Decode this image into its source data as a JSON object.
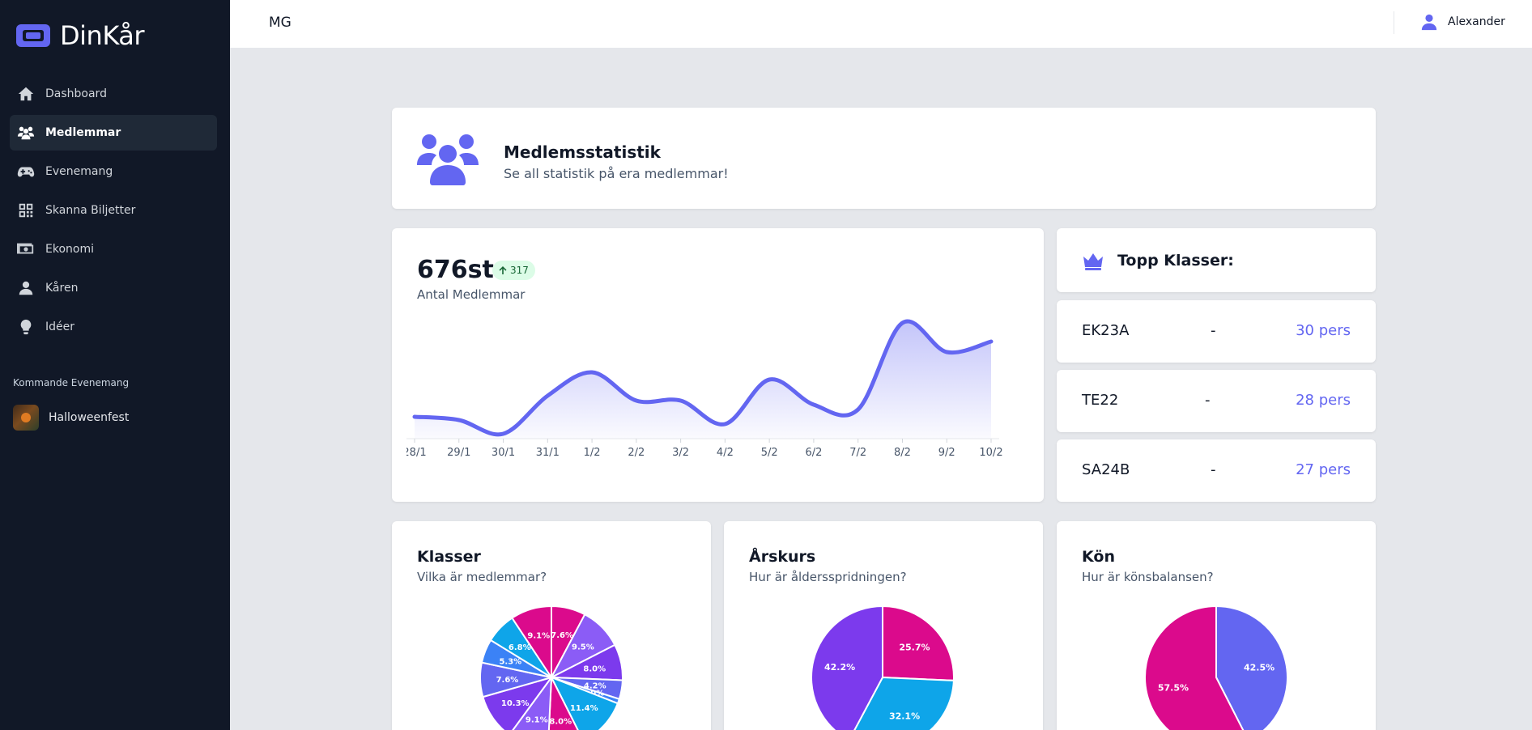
{
  "brand": {
    "name": "DinKår"
  },
  "sidebar": {
    "items": [
      {
        "label": "Dashboard",
        "icon": "home-icon",
        "active": false
      },
      {
        "label": "Medlemmar",
        "icon": "users-icon",
        "active": true
      },
      {
        "label": "Evenemang",
        "icon": "gamepad-icon",
        "active": false
      },
      {
        "label": "Skanna Biljetter",
        "icon": "qrcode-icon",
        "active": false
      },
      {
        "label": "Ekonomi",
        "icon": "money-icon",
        "active": false
      },
      {
        "label": "Kåren",
        "icon": "user-icon",
        "active": false
      },
      {
        "label": "Idéer",
        "icon": "lightbulb-icon",
        "active": false
      }
    ],
    "upcoming_title": "Kommande Evenemang",
    "upcoming_events": [
      {
        "label": "Halloweenfest"
      }
    ]
  },
  "topbar": {
    "org": "MG",
    "user_name": "Alexander"
  },
  "header": {
    "title": "Medlemsstatistik",
    "subtitle": "Se all statistik på era medlemmar!"
  },
  "members": {
    "count": "676st",
    "growth": "317",
    "label": "Antal Medlemmar"
  },
  "top_classes": {
    "title": "Topp Klasser:",
    "items": [
      {
        "name": "EK23A",
        "dash": "-",
        "count": "30 pers"
      },
      {
        "name": "TE22",
        "dash": "-",
        "count": "28 pers"
      },
      {
        "name": "SA24B",
        "dash": "-",
        "count": "27 pers"
      }
    ]
  },
  "pies": [
    {
      "title": "Klasser",
      "subtitle": "Vilka är medlemmar?"
    },
    {
      "title": "Årskurs",
      "subtitle": "Hur är åldersspridningen?"
    },
    {
      "title": "Kön",
      "subtitle": "Hur är könsbalansen?"
    }
  ],
  "colors": {
    "accent": "#6366f1",
    "sidebar_bg": "#111827",
    "pink": "#db0a8c",
    "blue": "#0ea5e9",
    "purple": "#7c3aed",
    "indigo": "#6366f1"
  },
  "chart_data": [
    {
      "type": "area",
      "x": [
        "28/1",
        "29/1",
        "30/1",
        "31/1",
        "1/2",
        "2/2",
        "3/2",
        "4/2",
        "5/2",
        "6/2",
        "7/2",
        "8/2",
        "9/2",
        "10/2"
      ],
      "values": [
        27,
        23,
        6,
        53,
        82,
        47,
        47,
        18,
        73,
        42,
        36,
        143,
        107,
        120
      ],
      "ylim": [
        0,
        160
      ]
    },
    {
      "type": "pie",
      "slices": [
        {
          "label": "7.6%",
          "value": 7.6,
          "color": "#db0a8c"
        },
        {
          "label": "9.5%",
          "value": 9.5,
          "color": "#8b5cf6"
        },
        {
          "label": "8.0%",
          "value": 8.0,
          "color": "#7c3aed"
        },
        {
          "label": "4.2%",
          "value": 4.2,
          "color": "#6366f1"
        },
        {
          "label": "1.0%",
          "value": 1.0,
          "color": "#3b82f6"
        },
        {
          "label": "11.4%",
          "value": 11.4,
          "color": "#0ea5e9"
        },
        {
          "label": "8.0%",
          "value": 8.0,
          "color": "#db0a8c"
        },
        {
          "label": "9.1%",
          "value": 9.1,
          "color": "#8b5cf6"
        },
        {
          "label": "10.3%",
          "value": 10.3,
          "color": "#7c3aed"
        },
        {
          "label": "7.6%",
          "value": 7.6,
          "color": "#6366f1"
        },
        {
          "label": "5.3%",
          "value": 5.3,
          "color": "#3b82f6"
        },
        {
          "label": "6.8%",
          "value": 6.8,
          "color": "#0ea5e9"
        },
        {
          "label": "9.1%",
          "value": 9.1,
          "color": "#db0a8c"
        }
      ]
    },
    {
      "type": "pie",
      "slices": [
        {
          "label": "25.7%",
          "value": 25.7,
          "color": "#db0a8c"
        },
        {
          "label": "32.1%",
          "value": 32.1,
          "color": "#0ea5e9"
        },
        {
          "label": "42.2%",
          "value": 42.2,
          "color": "#7c3aed"
        }
      ]
    },
    {
      "type": "pie",
      "slices": [
        {
          "label": "42.5%",
          "value": 42.5,
          "color": "#6366f1"
        },
        {
          "label": "57.5%",
          "value": 57.5,
          "color": "#db0a8c"
        }
      ]
    }
  ]
}
